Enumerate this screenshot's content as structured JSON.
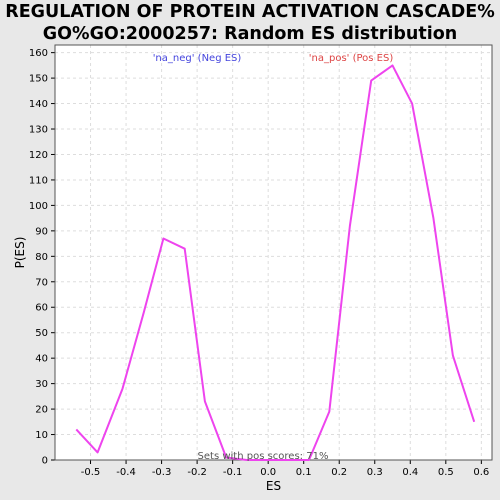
{
  "title_line1": "REGULATION OF PROTEIN ACTIVATION CASCADE%",
  "title_line2": "GO%GO:2000257: Random ES distribution",
  "colors": {
    "line": "#ee44ee",
    "neg": "#4444dd",
    "pos": "#dd4444",
    "grid": "#dddddd",
    "background": "#ffffff"
  },
  "chart_data": {
    "type": "line",
    "xlabel": "ES",
    "ylabel": "P(ES)",
    "xlim": [
      -0.6,
      0.63
    ],
    "ylim": [
      0,
      163
    ],
    "x_ticks": [
      "-0.5",
      "-0.4",
      "-0.3",
      "-0.2",
      "-0.1",
      "0.0",
      "0.1",
      "0.2",
      "0.3",
      "0.4",
      "0.5",
      "0.6"
    ],
    "y_ticks": [
      "0",
      "10",
      "20",
      "30",
      "40",
      "50",
      "60",
      "70",
      "80",
      "90",
      "100",
      "110",
      "120",
      "130",
      "140",
      "150",
      "160"
    ],
    "grid": true,
    "legend": [
      {
        "label": "'na_neg' (Neg ES)",
        "color": "#4444dd"
      },
      {
        "label": "'na_pos' (Pos ES)",
        "color": "#dd4444"
      }
    ],
    "annotation": "Sets with pos scores: 71%",
    "series": [
      {
        "x": [
          -0.54,
          -0.48,
          -0.41,
          -0.35,
          -0.295,
          -0.235,
          -0.178,
          -0.118,
          -0.06,
          0.0,
          0.05,
          0.115,
          0.172,
          0.23,
          0.29,
          0.35,
          0.405,
          0.465,
          0.52,
          0.58
        ],
        "y": [
          12,
          3,
          28,
          58,
          87,
          83,
          23,
          1,
          0,
          0,
          0,
          0,
          19,
          92,
          149,
          155,
          140,
          95,
          41,
          15
        ]
      }
    ]
  }
}
